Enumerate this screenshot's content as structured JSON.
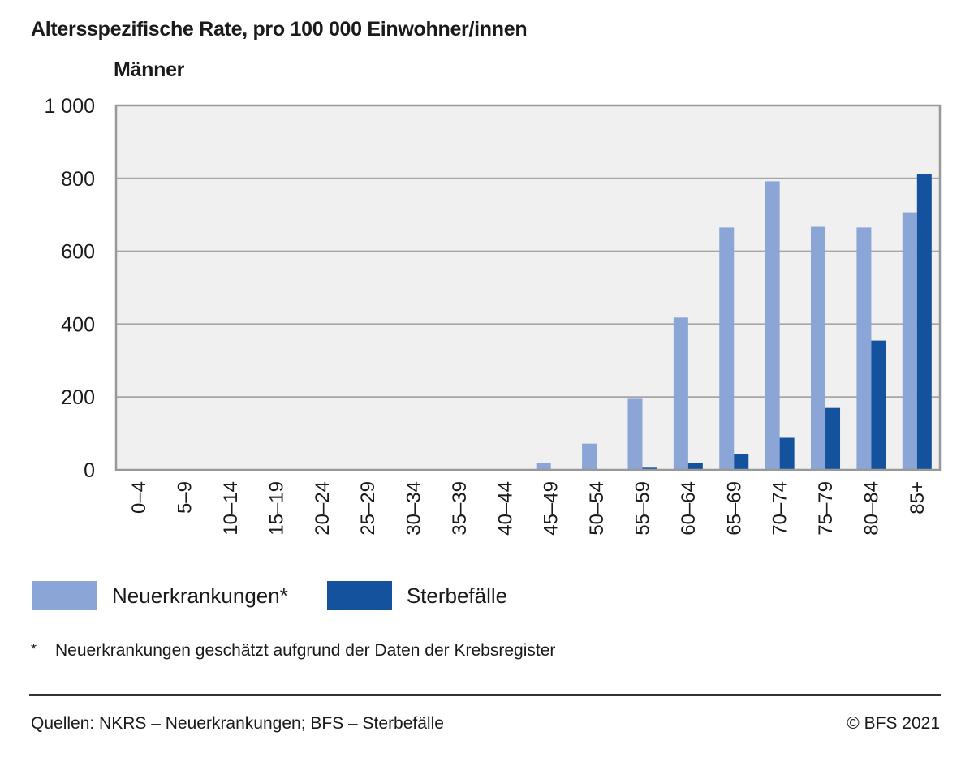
{
  "chart_data": {
    "type": "bar",
    "title": "Altersspezifische Rate, pro 100 000 Einwohner/innen",
    "subtitle": "Männer",
    "xlabel": "",
    "ylabel": "",
    "ylim": [
      0,
      1000
    ],
    "yticks": [
      0,
      200,
      400,
      600,
      800,
      1000
    ],
    "ytick_labels": [
      "0",
      "200",
      "400",
      "600",
      "800",
      "1 000"
    ],
    "grid": true,
    "legend_position": "bottom-left",
    "categories": [
      "0–4",
      "5–9",
      "10–14",
      "15–19",
      "20–24",
      "25–29",
      "30–34",
      "35–39",
      "40–44",
      "45–49",
      "50–54",
      "55–59",
      "60–64",
      "65–69",
      "70–74",
      "75–79",
      "80–84",
      "85+"
    ],
    "series": [
      {
        "name": "Neuerkrankungen*",
        "color": "#8BA5D6",
        "values": [
          0,
          0,
          0,
          0,
          0,
          0,
          0,
          0,
          0,
          18,
          72,
          195,
          418,
          665,
          792,
          667,
          665,
          707
        ]
      },
      {
        "name": "Sterbefälle",
        "color": "#15529E",
        "values": [
          0,
          0,
          0,
          0,
          0,
          0,
          0,
          0,
          0,
          1,
          2,
          6,
          18,
          43,
          88,
          170,
          355,
          812
        ]
      }
    ]
  },
  "legend": [
    {
      "label": "Neuerkrankungen*",
      "color": "#8BA5D6"
    },
    {
      "label": "Sterbefälle",
      "color": "#15529E"
    }
  ],
  "footnote": {
    "marker": "*",
    "text": "Neuerkrankungen geschätzt aufgrund der Daten der Krebsregister"
  },
  "source": "Quellen: NKRS – Neuerkrankungen; BFS – Sterbefälle",
  "copyright": "© BFS 2021",
  "colors": {
    "plot_background": "#F0F0F0",
    "gridline": "#A6A6A6",
    "axis": "#999999"
  }
}
